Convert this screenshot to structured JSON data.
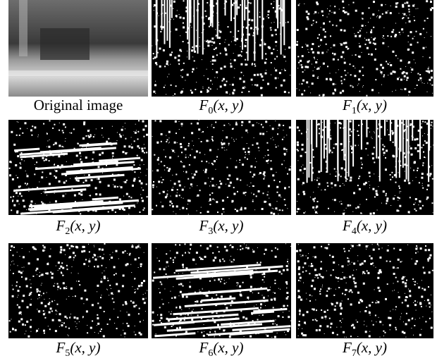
{
  "panels": [
    {
      "caption": "Original image"
    },
    {
      "symbol": "F",
      "subscript": "0",
      "args": "(x, y)"
    },
    {
      "symbol": "F",
      "subscript": "1",
      "args": "(x, y)"
    },
    {
      "symbol": "F",
      "subscript": "2",
      "args": "(x, y)"
    },
    {
      "symbol": "F",
      "subscript": "3",
      "args": "(x, y)"
    },
    {
      "symbol": "F",
      "subscript": "4",
      "args": "(x, y)"
    },
    {
      "symbol": "F",
      "subscript": "5",
      "args": "(x, y)"
    },
    {
      "symbol": "F",
      "subscript": "6",
      "args": "(x, y)"
    },
    {
      "symbol": "F",
      "subscript": "7",
      "args": "(x, y)"
    }
  ]
}
